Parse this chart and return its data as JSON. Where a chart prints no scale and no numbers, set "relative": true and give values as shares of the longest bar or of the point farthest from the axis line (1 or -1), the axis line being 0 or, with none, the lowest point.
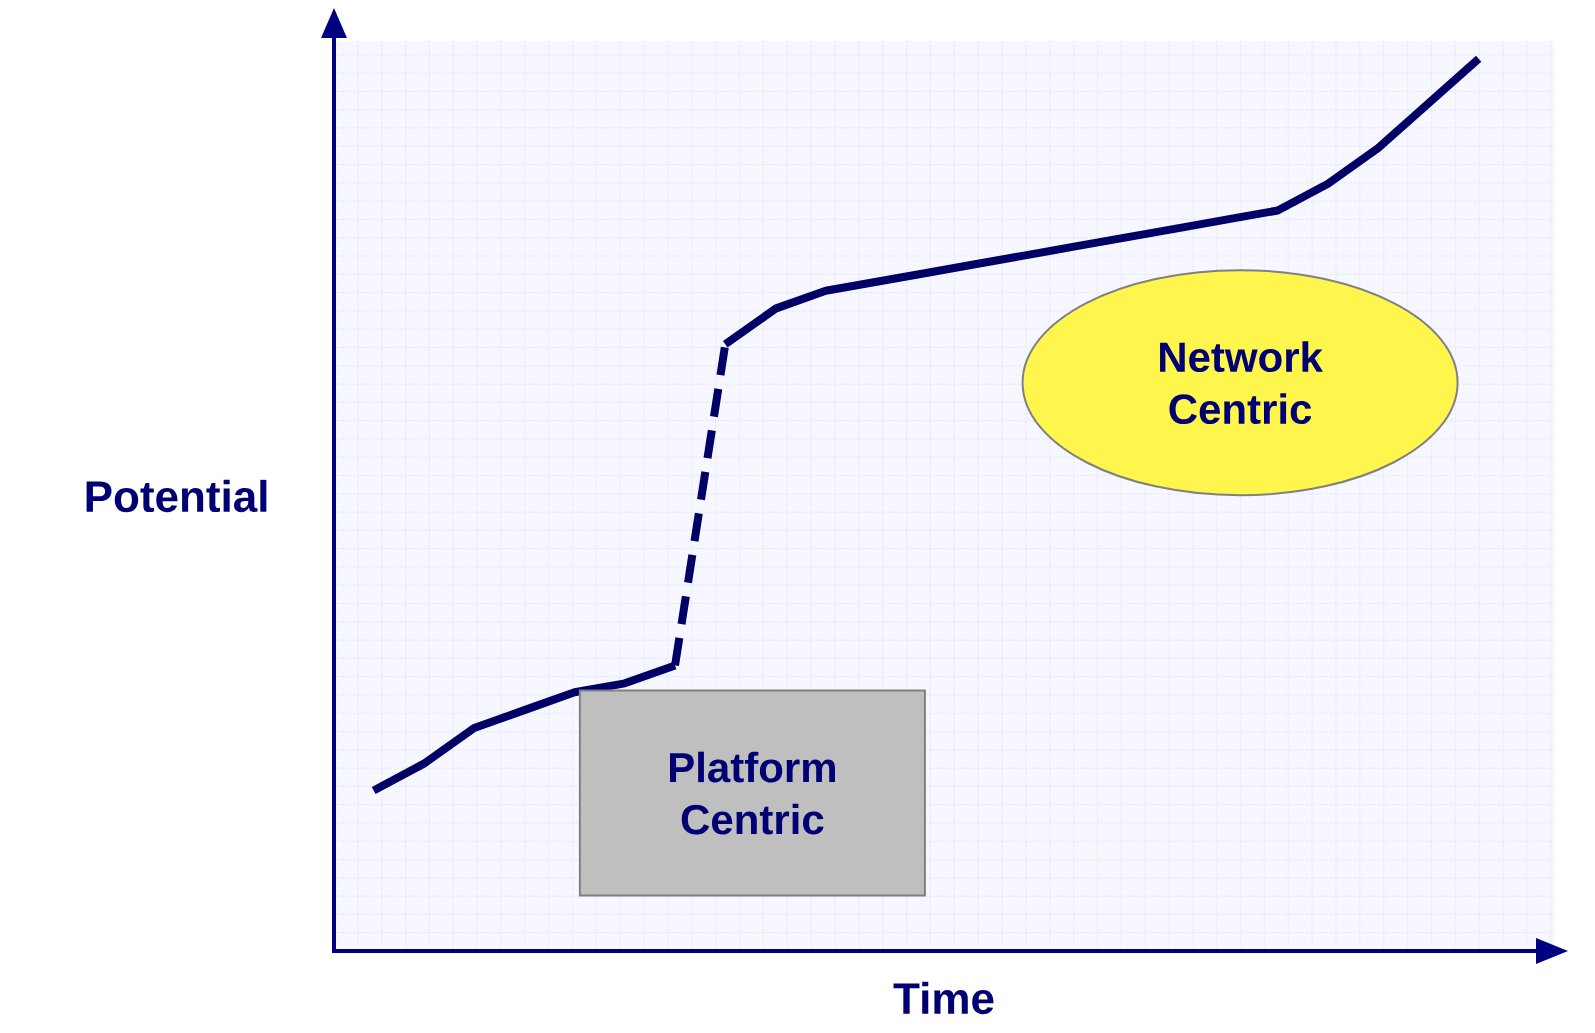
{
  "chart_data": {
    "type": "line",
    "relative": true,
    "xlabel": "Time",
    "ylabel": "Potential",
    "grid": true,
    "marker": "none",
    "categories": [
      null,
      null,
      null,
      null,
      null,
      null,
      null,
      null,
      null,
      null,
      null,
      null,
      null,
      null,
      null,
      null,
      null,
      null,
      null,
      null,
      null,
      null,
      null
    ],
    "series": [
      {
        "color": "#000066",
        "line_style": "solid",
        "values": [
          0.18,
          0.21,
          0.25,
          0.27,
          0.29,
          0.3,
          0.32,
          null,
          null,
          null,
          null,
          null,
          null,
          null,
          null,
          null,
          null,
          null,
          null,
          null,
          null,
          null,
          null
        ]
      },
      {
        "color": "#000066",
        "line_style": "dashed",
        "values": [
          null,
          null,
          null,
          null,
          null,
          null,
          0.32,
          0.68,
          null,
          null,
          null,
          null,
          null,
          null,
          null,
          null,
          null,
          null,
          null,
          null,
          null,
          null,
          null
        ]
      },
      {
        "color": "#000066",
        "line_style": "solid",
        "values": [
          null,
          null,
          null,
          null,
          null,
          null,
          null,
          0.68,
          0.72,
          0.74,
          0.75,
          0.76,
          0.77,
          0.78,
          0.79,
          0.8,
          0.81,
          0.82,
          0.83,
          0.86,
          0.9,
          0.95,
          1
        ]
      }
    ],
    "annotations": [
      "Platform Centric",
      "Network Centric"
    ]
  }
}
